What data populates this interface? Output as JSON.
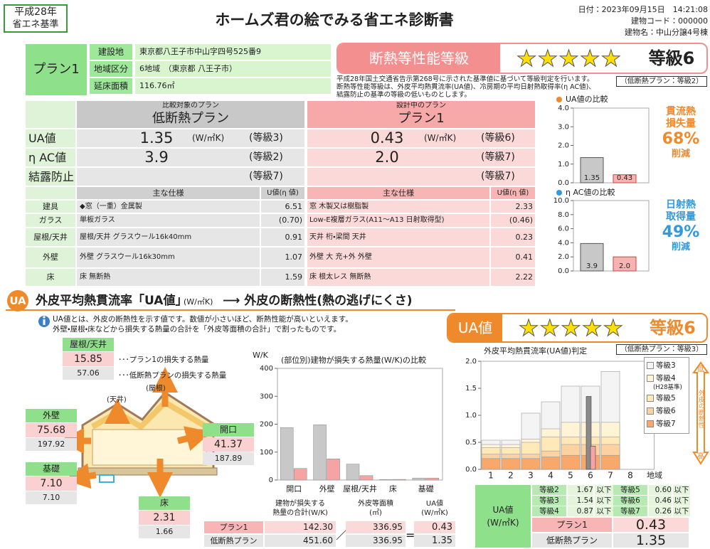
{
  "header": {
    "era": "平成28年",
    "standard": "省エネ基準",
    "title": "ホームズ君の絵でみる省エネ診断書",
    "date": "日付：2023年09月15日　14:21:08",
    "building_code": "建物コード：000000",
    "building_name": "建物名：中山分譲4号棟"
  },
  "plan": {
    "name": "プラン1",
    "rows": [
      {
        "label": "建設地",
        "value": "東京都八王子市中山字四号525番9"
      },
      {
        "label": "地域区分",
        "value": "6地域　（東京都 八王子市）"
      },
      {
        "label": "延床面積",
        "value": "116.76㎡"
      }
    ]
  },
  "performance": {
    "title": "断熱等性能等級",
    "stars": "★★★★★",
    "grade": "等級6",
    "note": [
      "平成28年国土交通省告示第268号に示された基準値に基づいて等級判定を行います。",
      "断熱等性能等級は、外皮平均熱貫流率(UA値)、冷房期の平均日射熱取得率(η AC値)、",
      "結露防止の基準の等級の低いものとします。"
    ],
    "low_plan_grade": "（低断熱プラン：等級2）"
  },
  "comparison": {
    "low": {
      "caption": "比較対象のプラン",
      "name": "低断熱プラン"
    },
    "design": {
      "caption": "設計中のプラン",
      "name": "プラン1"
    },
    "rows": [
      {
        "label": "UA値",
        "low_value": "1.35",
        "low_unit": "(W/㎡K)",
        "low_grade": "(等級3)",
        "design_value": "0.43",
        "design_unit": "(W/㎡K)",
        "design_grade": "(等級6)"
      },
      {
        "label": "η AC値",
        "low_value": "3.9",
        "low_grade": "(等級2)",
        "design_value": "2.0",
        "design_grade": "(等級7)"
      },
      {
        "label": "結露防止",
        "low_grade": "(等級7)",
        "design_grade": "(等級7)"
      }
    ],
    "spec_header": "主な仕様",
    "value_header": "U値(η 値)",
    "specs": [
      {
        "part": "建具",
        "low_spec": "◆窓（一重）金属製",
        "low_value": "6.51",
        "design_spec": "窓 木製又は樹脂製",
        "design_value": "2.33"
      },
      {
        "part": "ガラス",
        "low_spec": "単板ガラス",
        "low_value": "(0.70)",
        "design_spec": "Low-E複層ガラス(A11～A13 日射取得型)",
        "design_value": "(0.46)"
      },
      {
        "part": "屋根/天井",
        "low_spec": "屋根/天井 グラスウール16k40mm",
        "low_value": "0.91",
        "design_spec": "天井 桁・梁間 天井",
        "design_value": "0.23"
      },
      {
        "part": "外壁",
        "low_spec": "外壁 グラスウール16k30mm",
        "low_value": "1.07",
        "design_spec": "外壁 大 充+外 外壁",
        "design_value": "0.41"
      },
      {
        "part": "床",
        "low_spec": "床 無断熱",
        "low_value": "1.59",
        "design_spec": "床 根太レス 無断熱",
        "design_value": "2.22"
      }
    ]
  },
  "ua_chart": {
    "type": "bar",
    "title": "UA値の比較",
    "values": [
      1.35,
      0.43
    ],
    "colors": [
      "#c8c8c8",
      "#f7b3b3"
    ],
    "ylim": [
      0,
      4
    ],
    "yticks": [
      {
        "value": 0,
        "label": "0.0"
      },
      {
        "value": 1,
        "label": "1.0"
      },
      {
        "value": 2,
        "label": "2.0"
      },
      {
        "value": 3,
        "label": "3.0"
      },
      {
        "value": 4,
        "label": "4.0"
      }
    ],
    "note": "貫流熱\n損失量",
    "reduction": "68%",
    "reduction_label": "削減"
  },
  "eta_chart": {
    "type": "bar",
    "title": "η AC値の比較",
    "values": [
      3.9,
      2
    ],
    "value_labels": [
      "3.9",
      "2.0"
    ],
    "colors": [
      "#c8c8c8",
      "#f7b3b3"
    ],
    "ylim": [
      0,
      10
    ],
    "yticks": [
      {
        "value": 0,
        "label": "0.0"
      },
      {
        "value": 2,
        "label": "2.0"
      },
      {
        "value": 4,
        "label": "4.0"
      },
      {
        "value": 6,
        "label": "6.0"
      },
      {
        "value": 8,
        "label": "8.0"
      },
      {
        "value": 10,
        "label": "10.0"
      }
    ],
    "note": "日射熱\n取得量",
    "reduction": "49%",
    "reduction_label": "削減"
  },
  "ua_section": {
    "icon": "UA",
    "heading": "外皮平均熱貫流率「UA値」",
    "heading_unit": "(W/㎡K)",
    "heading_tail": "⟶ 外皮の断熱性(熱の逃げにくさ)",
    "info": [
      "UA値とは、外皮の断熱性を示す値です。数値が小さいほど、断熱性能が高いといえます。",
      "外壁・屋根・床などから損失する熱量の合計を「外皮等面積の合計」で割ったものです。"
    ],
    "grade_label": "UA値",
    "stars": "★★★★★",
    "grade": "等級6",
    "low_plan_grade": "（低断熱プラン：等級3）"
  },
  "heat_loss": {
    "legend_plan": "･･･プラン1の損失する熱量",
    "legend_low": "･･･低断熱プランの損失する熱量",
    "ceiling_note": "(天井)",
    "roof_note": "(屋根)",
    "parts": [
      {
        "label": "屋根/天井",
        "plan": "15.85",
        "low": "57.06"
      },
      {
        "label": "外壁",
        "plan": "75.68",
        "low": "197.92"
      },
      {
        "label": "開口",
        "plan": "41.37",
        "low": "187.89"
      },
      {
        "label": "基礎",
        "plan": "7.10",
        "low": "7.10"
      },
      {
        "label": "床",
        "plan": "2.31",
        "low": "1.66"
      }
    ]
  },
  "heat_chart": {
    "type": "bar",
    "title": "(部位別)建物が損失する熱量(W/K)の比較",
    "y_unit": "W/K",
    "categories": [
      "開口",
      "外壁",
      "屋根/天井",
      "床",
      "基礎"
    ],
    "series": [
      {
        "color": "#c8c8c8",
        "values": [
          187.89,
          197.92,
          57.06,
          1.66,
          7.1
        ]
      },
      {
        "color": "#f5a3a3",
        "values": [
          41.37,
          75.68,
          15.85,
          2.31,
          7.1
        ]
      }
    ],
    "ylim": [
      0,
      400
    ],
    "yticks": [
      0,
      100,
      200,
      300,
      400
    ]
  },
  "totals": {
    "headers": [
      "建物が損失する\n熱量の合計(W/K)",
      "外皮等面積\n(㎡)",
      "UA値\n(W/㎡K)"
    ],
    "divide": "／",
    "equals": "=",
    "rows": [
      {
        "label": "プラン1",
        "heat": "142.30",
        "area": "336.95",
        "ua": "0.43"
      },
      {
        "label": "低断熱プラン",
        "heat": "451.60",
        "area": "336.95",
        "ua": "1.35"
      }
    ]
  },
  "grade_chart": {
    "type": "bar",
    "title": "外皮平均熱貫流率(UA値)判定",
    "categories": [
      "1",
      "2",
      "3",
      "4",
      "5",
      "6",
      "7",
      "8"
    ],
    "x_label": "地域",
    "ylim": [
      0,
      2
    ],
    "yticks": [
      {
        "value": 0,
        "label": "0.0"
      },
      {
        "value": 0.5,
        "label": "0.5"
      },
      {
        "value": 1,
        "label": "1.0"
      },
      {
        "value": 1.5,
        "label": "1.5"
      },
      {
        "value": 2,
        "label": "2.0"
      }
    ],
    "series": [
      {
        "name": "等級3",
        "color": "#f4f4f4",
        "values": [
          0.54,
          0.54,
          1.04,
          1.25,
          1.54,
          1.54,
          1.81,
          null
        ]
      },
      {
        "name": "等級4",
        "note": "(H28基準)",
        "color": "#fff4d6",
        "values": [
          0.46,
          0.46,
          0.56,
          0.75,
          0.87,
          0.87,
          0.87,
          null
        ]
      },
      {
        "name": "等級5",
        "color": "#ffe9b8",
        "values": [
          0.4,
          0.4,
          0.5,
          0.6,
          0.6,
          0.6,
          0.6,
          null
        ]
      },
      {
        "name": "等級6",
        "color": "#fcd3a0",
        "values": [
          0.28,
          0.28,
          0.28,
          0.34,
          0.46,
          0.46,
          0.46,
          null
        ]
      },
      {
        "name": "等級7",
        "color": "#f7a86a",
        "values": [
          0.2,
          0.2,
          0.2,
          0.23,
          0.26,
          0.26,
          0.26,
          null
        ]
      }
    ],
    "plans": [
      {
        "region": 6,
        "value": 1.35,
        "color": "#8a8a8a"
      },
      {
        "region": 6,
        "value": 0.43,
        "color": "#f5a3a3"
      }
    ],
    "low": "低",
    "axis_note": "外皮の断熱性",
    "high": "高"
  },
  "grade_table": {
    "label": "UA値\n(W/㎡K)",
    "rows": [
      [
        "等級2",
        "1.67",
        "以下",
        "等級5",
        "0.60",
        "以下"
      ],
      [
        "等級3",
        "1.54",
        "以下",
        "等級6",
        "0.46",
        "以下"
      ],
      [
        "等級4",
        "0.87",
        "以下",
        "等級7",
        "0.26",
        "以下"
      ]
    ],
    "plans": [
      {
        "label": "プラン1",
        "value": "0.43"
      },
      {
        "label": "低断熱プラン",
        "value": "1.35"
      }
    ]
  }
}
